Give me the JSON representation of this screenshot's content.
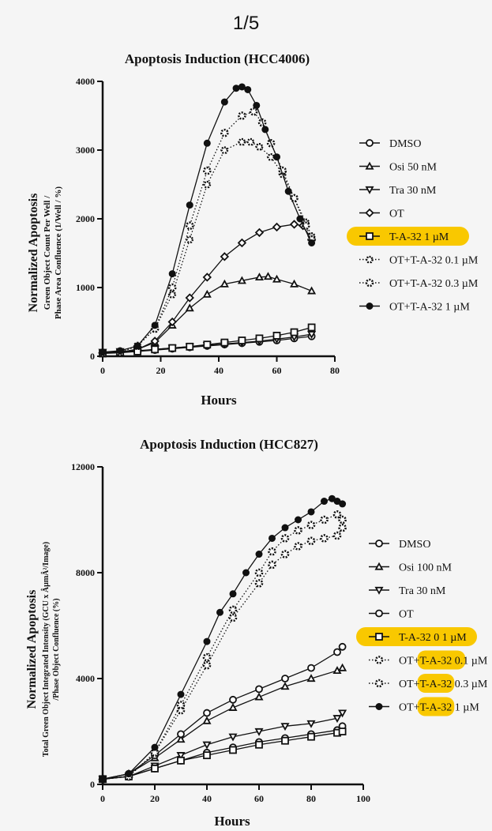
{
  "page_indicator": "1/5",
  "highlight_color": "#f9c800",
  "chart_data": [
    {
      "type": "line",
      "title": "Apoptosis Induction (HCC4006)",
      "ylabel_lines": [
        "Normalized Apoptosis",
        "Green Object Count Per Well /",
        "Phase Area Confluence (1/Well / %)"
      ],
      "xlabel": "Hours",
      "xlim": [
        0,
        80
      ],
      "ylim": [
        0,
        4000
      ],
      "xticks": [
        "0",
        "20",
        "40",
        "60",
        "80"
      ],
      "yticks": [
        "0",
        "1000",
        "2000",
        "3000",
        "4000"
      ],
      "legend_position": "right",
      "series": [
        {
          "name": "DMSO",
          "marker": "open-circle",
          "line": "solid",
          "x": [
            0,
            6,
            12,
            18,
            24,
            30,
            36,
            42,
            48,
            54,
            60,
            66,
            72
          ],
          "y": [
            50,
            60,
            70,
            90,
            110,
            130,
            150,
            170,
            190,
            210,
            230,
            260,
            290
          ]
        },
        {
          "name": "Osi 50 nM",
          "marker": "open-triangle-up",
          "line": "solid",
          "x": [
            0,
            6,
            12,
            18,
            24,
            30,
            36,
            42,
            48,
            54,
            57,
            60,
            66,
            72
          ],
          "y": [
            50,
            60,
            100,
            200,
            450,
            700,
            900,
            1050,
            1100,
            1150,
            1160,
            1120,
            1050,
            950
          ]
        },
        {
          "name": "Tra 30 nM",
          "marker": "open-triangle-down",
          "line": "solid",
          "x": [
            0,
            6,
            12,
            18,
            24,
            30,
            36,
            42,
            48,
            54,
            60,
            66,
            72
          ],
          "y": [
            60,
            70,
            80,
            100,
            120,
            140,
            160,
            180,
            200,
            220,
            250,
            280,
            320
          ]
        },
        {
          "name": "OT",
          "marker": "open-diamond",
          "line": "solid",
          "x": [
            0,
            6,
            12,
            18,
            24,
            30,
            36,
            42,
            48,
            54,
            60,
            66,
            69,
            72
          ],
          "y": [
            50,
            60,
            100,
            220,
            500,
            850,
            1150,
            1450,
            1650,
            1800,
            1880,
            1920,
            1900,
            1700
          ]
        },
        {
          "name": "T-A-32 1 µM",
          "marker": "open-square",
          "line": "solid",
          "highlighted": true,
          "x": [
            0,
            6,
            12,
            18,
            24,
            30,
            36,
            42,
            48,
            54,
            60,
            66,
            72
          ],
          "y": [
            40,
            50,
            70,
            100,
            120,
            140,
            170,
            200,
            230,
            260,
            300,
            350,
            420
          ]
        },
        {
          "name": "OT+T-A-32 0.1 µM",
          "marker": "open-hexagon",
          "line": "dotted",
          "x": [
            0,
            6,
            12,
            18,
            24,
            30,
            36,
            42,
            48,
            51,
            54,
            58,
            62,
            66,
            70,
            72
          ],
          "y": [
            50,
            60,
            150,
            400,
            900,
            1700,
            2500,
            3000,
            3120,
            3120,
            3050,
            2900,
            2650,
            2300,
            1950,
            1750
          ]
        },
        {
          "name": "OT+T-A-32 0.3 µM",
          "marker": "open-circle-dot",
          "line": "dotted",
          "x": [
            0,
            6,
            12,
            18,
            24,
            30,
            36,
            42,
            48,
            52,
            55,
            58,
            62,
            66,
            70,
            72
          ],
          "y": [
            50,
            60,
            150,
            400,
            1000,
            1900,
            2700,
            3250,
            3500,
            3560,
            3400,
            3100,
            2700,
            2300,
            1900,
            1700
          ]
        },
        {
          "name": "OT+T-A-32 1 µM",
          "marker": "filled-circle",
          "line": "solid",
          "x": [
            0,
            6,
            12,
            18,
            24,
            30,
            36,
            42,
            46,
            48,
            50,
            53,
            56,
            60,
            64,
            68,
            72
          ],
          "y": [
            60,
            80,
            150,
            450,
            1200,
            2200,
            3100,
            3700,
            3900,
            3920,
            3880,
            3650,
            3300,
            2900,
            2400,
            2000,
            1650
          ]
        }
      ]
    },
    {
      "type": "line",
      "title": "Apoptosis Induction (HCC827)",
      "ylabel_lines": [
        "Normalized Apoptosis",
        "Total Green Object Integrated Intensity (GCU x ÂµmÂ²/Image)",
        "/Phase Object Confluence (%)"
      ],
      "xlabel": "Hours",
      "xlim": [
        0,
        100
      ],
      "ylim": [
        0,
        12000
      ],
      "xticks": [
        "0",
        "20",
        "40",
        "60",
        "80",
        "100"
      ],
      "yticks": [
        "0",
        "4000",
        "8000",
        "12000"
      ],
      "legend_position": "right",
      "series": [
        {
          "name": "DMSO",
          "marker": "open-circle",
          "line": "solid",
          "x": [
            0,
            10,
            20,
            30,
            40,
            50,
            60,
            70,
            80,
            90,
            92
          ],
          "y": [
            200,
            300,
            600,
            900,
            1200,
            1400,
            1600,
            1750,
            1900,
            2050,
            2200
          ]
        },
        {
          "name": "Osi 100 nM",
          "marker": "open-triangle-up",
          "line": "solid",
          "x": [
            0,
            10,
            20,
            30,
            40,
            50,
            60,
            70,
            80,
            90,
            92
          ],
          "y": [
            200,
            400,
            1000,
            1700,
            2400,
            2900,
            3300,
            3700,
            4000,
            4300,
            4400
          ]
        },
        {
          "name": "Tra 30 nM",
          "marker": "open-triangle-down",
          "line": "solid",
          "x": [
            0,
            10,
            20,
            30,
            40,
            50,
            60,
            70,
            80,
            90,
            92
          ],
          "y": [
            200,
            300,
            700,
            1100,
            1500,
            1800,
            2000,
            2200,
            2300,
            2500,
            2700
          ]
        },
        {
          "name": "OT",
          "marker": "open-circle",
          "line": "solid",
          "x": [
            0,
            10,
            20,
            30,
            40,
            50,
            60,
            70,
            80,
            90,
            92
          ],
          "y": [
            200,
            400,
            1100,
            1900,
            2700,
            3200,
            3600,
            4000,
            4400,
            5000,
            5200
          ]
        },
        {
          "name": "T-A-32 0 1 µM",
          "marker": "open-square",
          "line": "solid",
          "highlighted": true,
          "x": [
            0,
            10,
            20,
            30,
            40,
            50,
            60,
            70,
            80,
            90,
            92
          ],
          "y": [
            200,
            300,
            600,
            900,
            1100,
            1300,
            1500,
            1650,
            1800,
            1950,
            2000
          ]
        },
        {
          "name": "OT+T-A-32 0.1 µM",
          "marker": "open-circle-dot",
          "line": "dotted",
          "x": [
            0,
            10,
            20,
            30,
            40,
            50,
            60,
            65,
            70,
            75,
            80,
            85,
            90,
            92
          ],
          "y": [
            200,
            300,
            1200,
            2800,
            4500,
            6300,
            7600,
            8300,
            8700,
            9000,
            9200,
            9300,
            9400,
            9700
          ]
        },
        {
          "name": "OT+T-A-32 0.3 µM",
          "marker": "open-circle-dot",
          "line": "dotted",
          "x": [
            0,
            10,
            20,
            30,
            40,
            50,
            60,
            65,
            70,
            75,
            80,
            85,
            90,
            92
          ],
          "y": [
            200,
            300,
            1200,
            3000,
            4800,
            6600,
            8000,
            8800,
            9300,
            9600,
            9800,
            10000,
            10200,
            10000
          ]
        },
        {
          "name": "OT+T-A-32 1 µM",
          "marker": "filled-circle",
          "line": "solid",
          "x": [
            0,
            10,
            20,
            30,
            40,
            45,
            50,
            55,
            60,
            65,
            70,
            75,
            80,
            85,
            88,
            90,
            92
          ],
          "y": [
            200,
            400,
            1400,
            3400,
            5400,
            6500,
            7200,
            8000,
            8700,
            9300,
            9700,
            10000,
            10300,
            10700,
            10800,
            10700,
            10600
          ]
        }
      ]
    }
  ],
  "legend_highlights": [
    [
      "T-A-32 1 µM"
    ],
    [
      "T-A-32 0 1 µM",
      "T-A-32 0.",
      "T-A-32",
      "T-A-32"
    ]
  ]
}
